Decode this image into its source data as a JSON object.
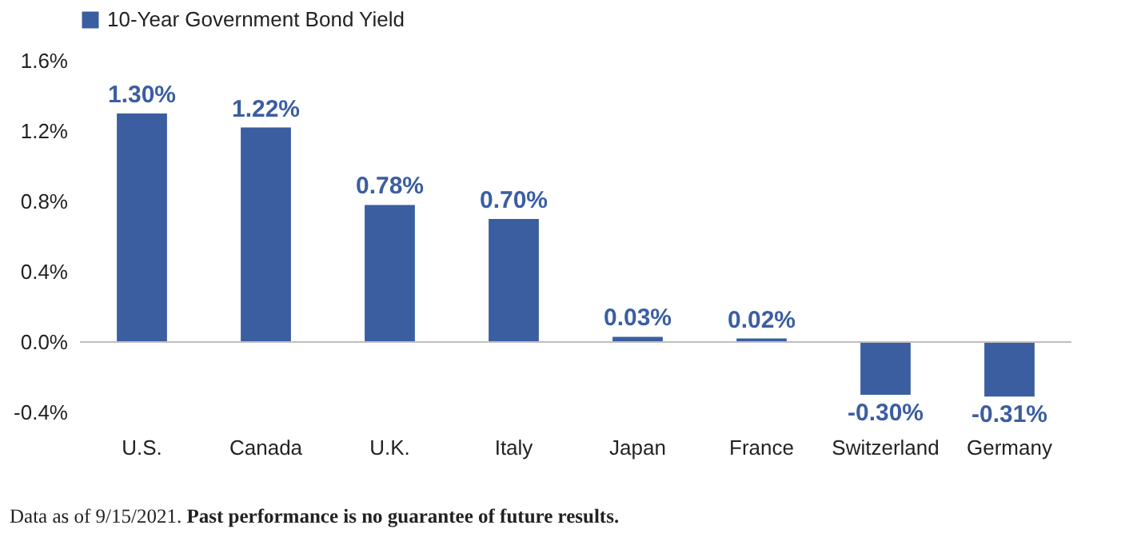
{
  "chart_data": {
    "type": "bar",
    "categories": [
      "U.S.",
      "Canada",
      "U.K.",
      "Italy",
      "Japan",
      "France",
      "Switzerland",
      "Germany"
    ],
    "series": [
      {
        "name": "10-Year Government Bond Yield",
        "color": "#3b5ea1",
        "values": [
          1.3,
          1.22,
          0.78,
          0.7,
          0.03,
          0.02,
          -0.3,
          -0.31
        ],
        "value_labels": [
          "1.30%",
          "1.22%",
          "0.78%",
          "0.70%",
          "0.03%",
          "0.02%",
          "-0.30%",
          "-0.31%"
        ]
      }
    ],
    "ylim": [
      -0.4,
      1.6
    ],
    "yticks": [
      {
        "value": -0.4,
        "label": "-0.4%"
      },
      {
        "value": 0,
        "label": "0.0%"
      },
      {
        "value": 0.4,
        "label": "0.4%"
      },
      {
        "value": 0.8,
        "label": "0.8%"
      },
      {
        "value": 1.2,
        "label": "1.2%"
      },
      {
        "value": 1.6,
        "label": "1.6%"
      }
    ],
    "ref_lines": [
      {
        "axis": "y",
        "value": 0,
        "color": "#bfbfbf"
      }
    ],
    "grid": false,
    "legend": "top",
    "annotations": [
      "Data as of 9/15/2021.",
      "Past performance is no guarantee of future results."
    ]
  }
}
